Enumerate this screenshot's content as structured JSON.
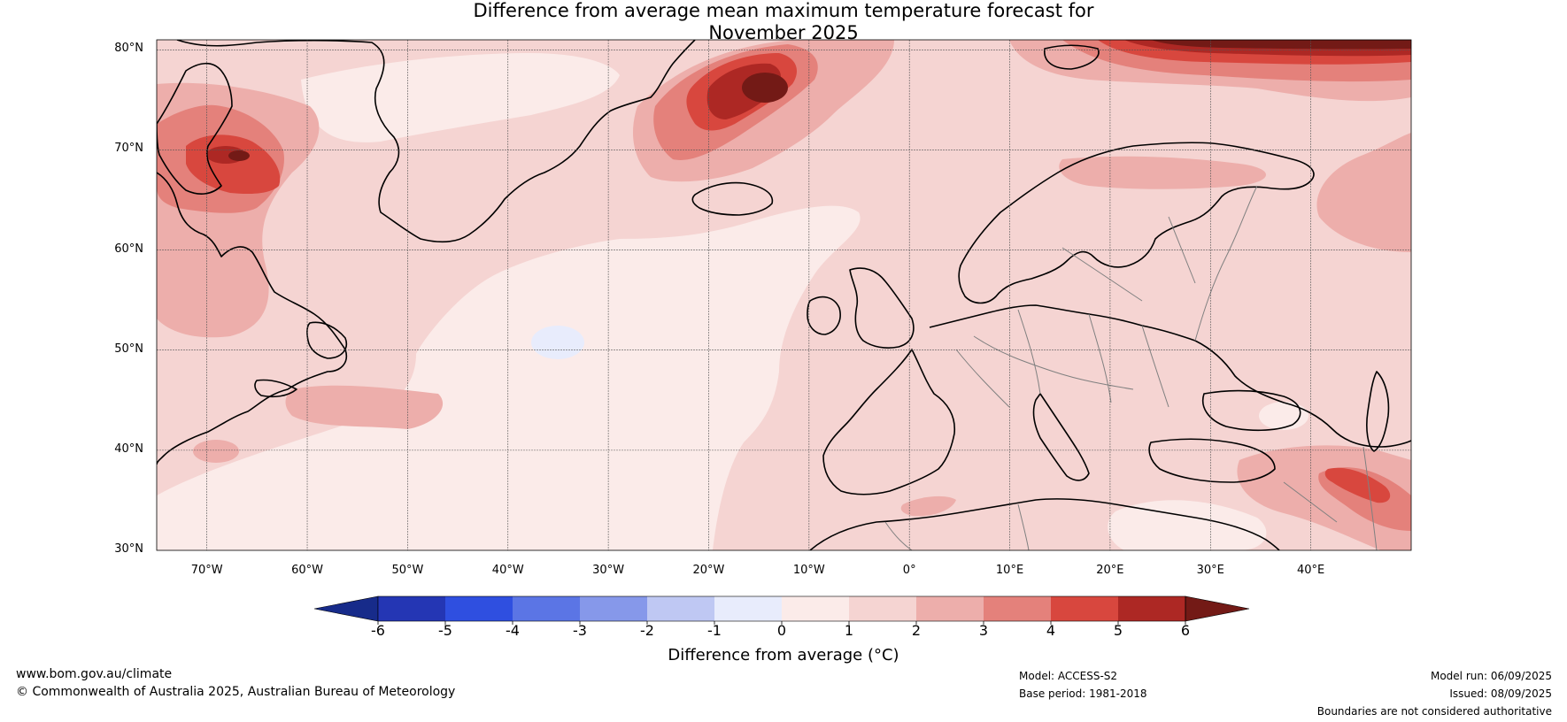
{
  "title": {
    "line1": "Difference from average mean maximum temperature forecast for",
    "line2": "November 2025"
  },
  "map": {
    "lat_labels": [
      "80°N",
      "70°N",
      "60°N",
      "50°N",
      "40°N",
      "30°N"
    ],
    "lon_labels": [
      "70°W",
      "60°W",
      "50°W",
      "40°W",
      "30°W",
      "20°W",
      "10°W",
      "0°",
      "10°E",
      "20°E",
      "30°E",
      "40°E"
    ],
    "anomaly_colors": {
      "0_to_1": "#fbebe9",
      "1_to_2": "#f5d4d2",
      "2_to_3": "#edaeab",
      "3_to_4": "#e4817b",
      "4_to_5": "#d8473e",
      "5_to_6": "#ad2824",
      "above_6": "#731a16",
      "minus1_to_0": "#e8ecfc"
    },
    "coastline_color": "#000000",
    "border_color": "#808080"
  },
  "colorbar": {
    "ticks": [
      "-6",
      "-5",
      "-4",
      "-3",
      "-2",
      "-1",
      "0",
      "1",
      "2",
      "3",
      "4",
      "5",
      "6"
    ],
    "colors": [
      "#172b8a",
      "#2436b4",
      "#2f4fe0",
      "#5b75e5",
      "#8698ea",
      "#bfc8f3",
      "#e8ecfc",
      "#fbebe9",
      "#f5d4d2",
      "#edaeab",
      "#e4817b",
      "#d8473e",
      "#ad2824",
      "#731a16"
    ],
    "label": "Difference from average (°C)"
  },
  "footer": {
    "website": "www.bom.gov.au/climate",
    "copyright": "© Commonwealth of Australia 2025, Australian Bureau of Meteorology",
    "model": "Model: ACCESS-S2",
    "base_period": "Base period: 1981-2018",
    "model_run": "Model run: 06/09/2025",
    "issued": "Issued: 08/09/2025",
    "boundaries": "Boundaries are not considered authoritative"
  }
}
